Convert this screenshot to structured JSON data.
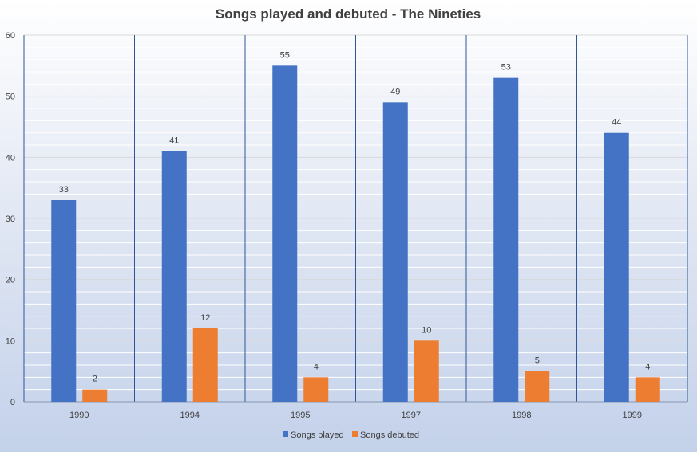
{
  "chart_data": {
    "type": "bar",
    "title": "Songs played and debuted - The Nineties",
    "xlabel": "",
    "ylabel": "",
    "categories": [
      "1990",
      "1994",
      "1995",
      "1997",
      "1998",
      "1999"
    ],
    "series": [
      {
        "name": "Songs played",
        "values": [
          33,
          41,
          55,
          49,
          53,
          44
        ],
        "color": "#4472c4"
      },
      {
        "name": "Songs debuted",
        "values": [
          2,
          12,
          4,
          10,
          5,
          4
        ],
        "color": "#ed7d31"
      }
    ],
    "ylim": [
      0,
      60
    ],
    "y_major_ticks": [
      0,
      10,
      20,
      30,
      40,
      50,
      60
    ],
    "y_minor_step": 2,
    "grid": true,
    "data_labels": true,
    "legend_position": "bottom"
  }
}
